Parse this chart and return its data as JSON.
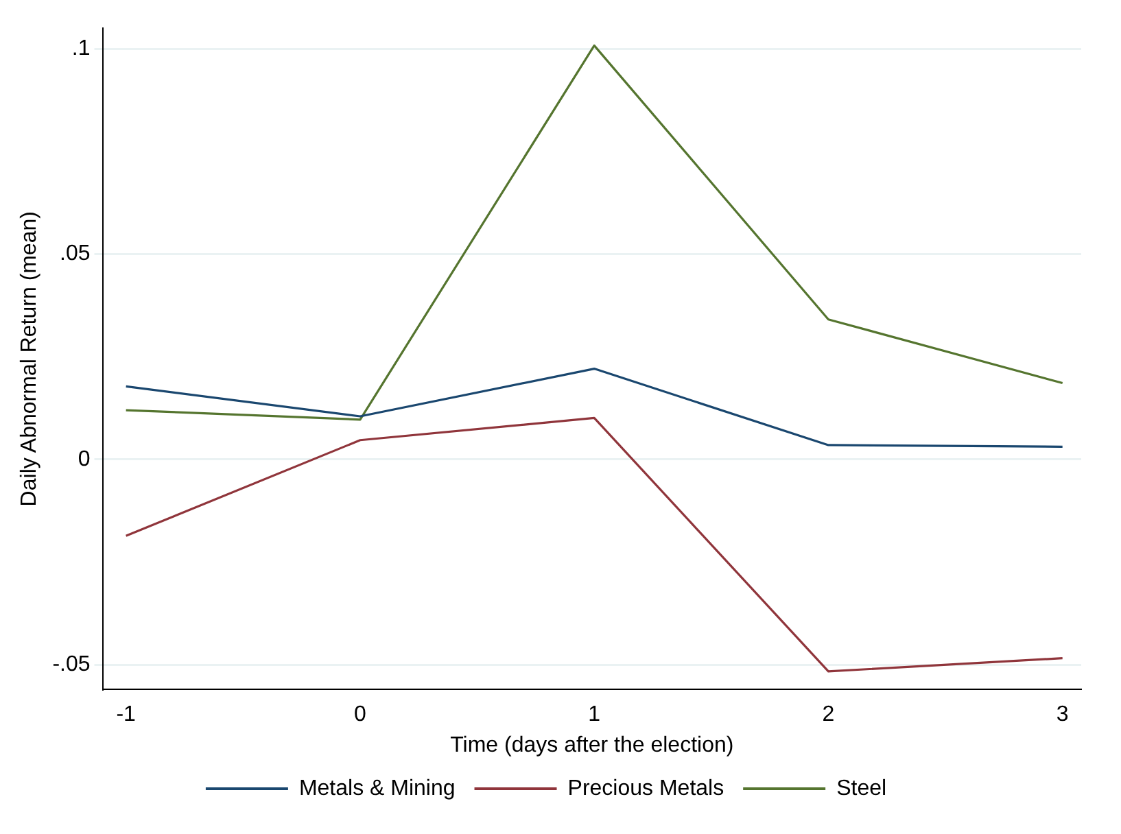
{
  "chart_data": {
    "type": "line",
    "xlabel": "Time (days after the election)",
    "ylabel": "Daily Abnormal Return (mean)",
    "x": [
      -1,
      0,
      1,
      2,
      3
    ],
    "series": [
      {
        "name": "Metals & Mining",
        "color": "#1a476f",
        "values": [
          0.0178,
          0.0105,
          0.0221,
          0.0035,
          0.0031
        ]
      },
      {
        "name": "Precious Metals",
        "color": "#90353b",
        "values": [
          -0.0186,
          0.0047,
          0.0101,
          -0.0516,
          -0.0484
        ]
      },
      {
        "name": "Steel",
        "color": "#55752f",
        "values": [
          0.012,
          0.0097,
          0.1008,
          0.0341,
          0.0186
        ]
      }
    ],
    "xlim": [
      -1.1,
      3.08
    ],
    "ylim": [
      -0.056,
      0.105
    ],
    "xticks": [
      -1,
      0,
      1,
      2,
      3
    ],
    "yticks": [
      {
        "value": -0.05,
        "label": "-.05"
      },
      0,
      {
        "value": 0.05,
        "label": ".05"
      },
      {
        "value": 0.1,
        "label": ".1"
      }
    ],
    "grid": "y",
    "legend": "bottom",
    "marker": "none",
    "line_style": "solid"
  }
}
